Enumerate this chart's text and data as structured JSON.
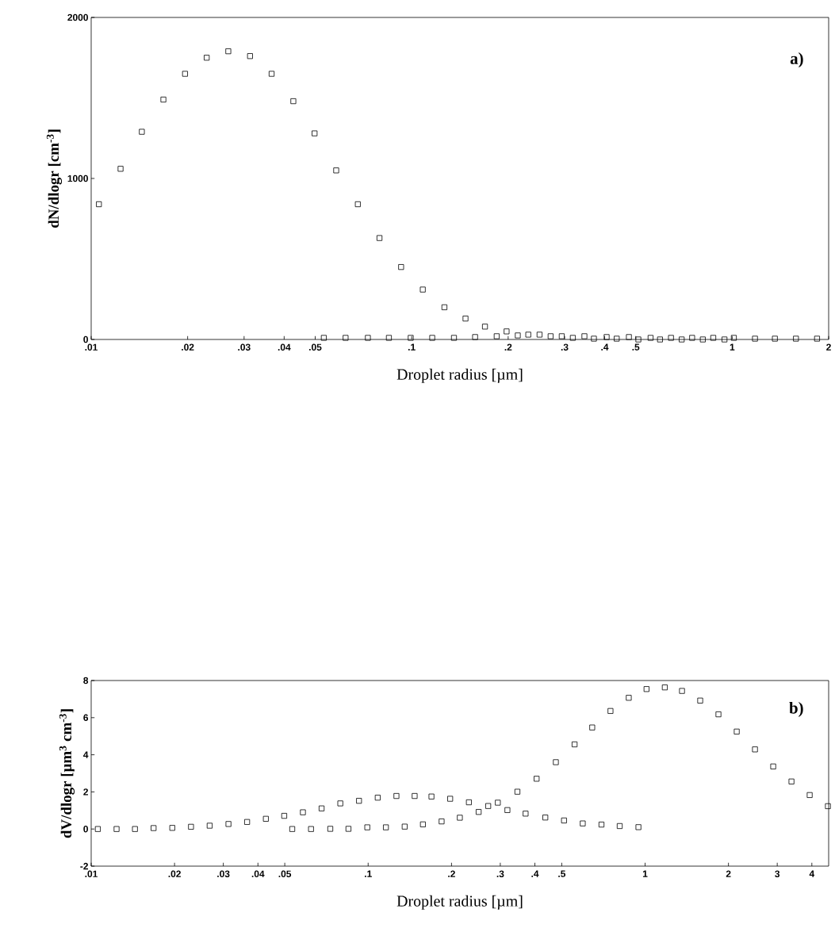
{
  "chart_data": [
    {
      "type": "scatter",
      "xlabel": "Droplet radius [µm]",
      "ylabel": "dN/dlogr  [cm$^{-3}$]",
      "annotations": [
        "a)"
      ],
      "log": "x",
      "marker": "square",
      "xlim": [
        0.01,
        2
      ],
      "ylim": [
        0,
        2000
      ],
      "xticks": [
        {
          "value": 0.01,
          "label": ".01"
        },
        {
          "value": 0.02,
          "label": ".02"
        },
        {
          "value": 0.03,
          "label": ".03"
        },
        {
          "value": 0.04,
          "label": ".04"
        },
        {
          "value": 0.05,
          "label": ".05"
        },
        {
          "value": 0.1,
          "label": ".1"
        },
        {
          "value": 0.2,
          "label": ".2"
        },
        {
          "value": 0.3,
          "label": ".3"
        },
        {
          "value": 0.4,
          "label": ".4"
        },
        {
          "value": 0.5,
          "label": ".5"
        },
        1,
        2
      ],
      "yticks": [
        0,
        1000,
        2000
      ],
      "series": [
        {
          "color": "#000000",
          "x": [
            0.01057,
            0.01235,
            0.01439,
            0.0168,
            0.01963,
            0.02293,
            0.02678,
            0.03131,
            0.03656,
            0.04273,
            0.04977,
            0.05814,
            0.06792,
            0.07935,
            0.09268,
            0.1083,
            0.1265,
            0.1472,
            0.1693,
            0.1978,
            0.2311,
            0.2713,
            0.3183,
            0.3703,
            0.4362,
            0.5096,
            0.5954,
            0.6958,
            0.8097,
            0.946
          ],
          "values": [
            840,
            1060,
            1290,
            1490,
            1650,
            1750,
            1790,
            1760,
            1650,
            1480,
            1280,
            1050,
            840,
            630,
            450,
            310,
            200,
            130,
            80,
            50,
            30,
            20,
            10,
            5,
            5,
            0,
            0,
            0,
            0,
            0
          ]
        },
        {
          "color": "#000000",
          "x": [
            0.0532,
            0.0622,
            0.073,
            0.0849,
            0.0993,
            0.1159,
            0.1355,
            0.1577,
            0.1842,
            0.2143,
            0.2506,
            0.2939,
            0.3459,
            0.4057,
            0.4761,
            0.5564,
            0.6442,
            0.7499,
            0.8728,
            1.012,
            1.178,
            1.359,
            1.581,
            1.84
          ],
          "values": [
            10,
            10,
            10,
            10,
            10,
            10,
            10,
            15,
            20,
            25,
            30,
            20,
            20,
            15,
            15,
            10,
            10,
            10,
            10,
            10,
            5,
            5,
            5,
            5
          ]
        }
      ]
    },
    {
      "type": "scatter",
      "xlabel": "Droplet radius [µm]",
      "ylabel": "dV/dlogr  [µm$^{3}$ cm$^{-3}$]",
      "annotations": [
        "b)"
      ],
      "log": "x",
      "marker": "square",
      "xlim": [
        0.01,
        4.6
      ],
      "ylim": [
        -2,
        8
      ],
      "xticks": [
        {
          "value": 0.01,
          "label": ".01"
        },
        {
          "value": 0.02,
          "label": ".02"
        },
        {
          "value": 0.03,
          "label": ".03"
        },
        {
          "value": 0.04,
          "label": ".04"
        },
        {
          "value": 0.05,
          "label": ".05"
        },
        {
          "value": 0.1,
          "label": ".1"
        },
        {
          "value": 0.2,
          "label": ".2"
        },
        {
          "value": 0.3,
          "label": ".3"
        },
        {
          "value": 0.4,
          "label": ".4"
        },
        {
          "value": 0.5,
          "label": ".5"
        },
        1,
        2,
        3,
        4
      ],
      "yticks": [
        -2,
        0,
        2,
        4,
        6,
        8
      ],
      "series": [
        {
          "color": "#000000",
          "x": [
            0.01057,
            0.01235,
            0.01439,
            0.0168,
            0.01963,
            0.02293,
            0.02678,
            0.03131,
            0.03656,
            0.04273,
            0.04977,
            0.05814,
            0.06792,
            0.07935,
            0.09268,
            0.1083,
            0.1265,
            0.1472,
            0.1693,
            0.1978,
            0.2311,
            0.2713,
            0.3183,
            0.3703,
            0.4362,
            0.5096,
            0.5954,
            0.6958,
            0.8097,
            0.946
          ],
          "values": [
            0,
            0,
            0,
            0.05,
            0.06,
            0.12,
            0.18,
            0.27,
            0.38,
            0.55,
            0.71,
            0.9,
            1.11,
            1.38,
            1.52,
            1.69,
            1.78,
            1.78,
            1.75,
            1.63,
            1.44,
            1.24,
            1.02,
            0.83,
            0.62,
            0.46,
            0.3,
            0.24,
            0.16,
            0.1
          ]
        },
        {
          "color": "#000000",
          "x": [
            0.0532,
            0.0622,
            0.073,
            0.0849,
            0.0993,
            0.1159,
            0.1355,
            0.1577,
            0.1842,
            0.2143,
            0.2506,
            0.2939,
            0.3459,
            0.4057,
            0.4761,
            0.5564,
            0.6442,
            0.7499,
            0.8728,
            1.012,
            1.178,
            1.359,
            1.581,
            1.84,
            2.142,
            2.493,
            2.901,
            3.377,
            3.929,
            4.571
          ],
          "values": [
            0,
            0,
            0.01,
            0.01,
            0.09,
            0.09,
            0.13,
            0.25,
            0.41,
            0.61,
            0.92,
            1.42,
            2.01,
            2.71,
            3.6,
            4.56,
            5.47,
            6.36,
            7.07,
            7.54,
            7.63,
            7.44,
            6.92,
            6.18,
            5.25,
            4.29,
            3.37,
            2.56,
            1.83,
            1.23
          ]
        }
      ]
    }
  ]
}
